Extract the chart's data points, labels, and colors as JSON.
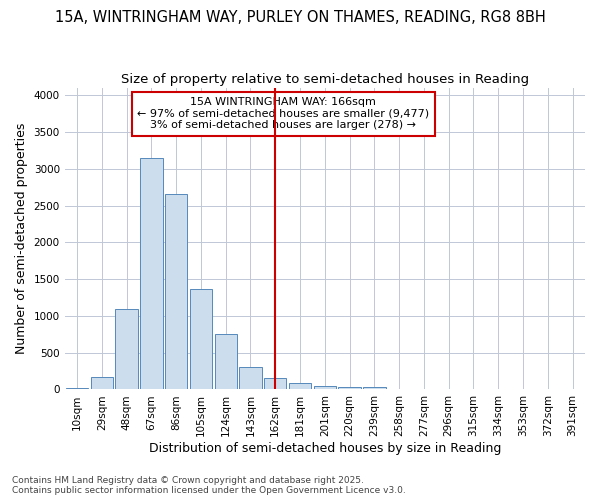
{
  "title_line1": "15A, WINTRINGHAM WAY, PURLEY ON THAMES, READING, RG8 8BH",
  "title_line2": "Size of property relative to semi-detached houses in Reading",
  "xlabel": "Distribution of semi-detached houses by size in Reading",
  "ylabel": "Number of semi-detached properties",
  "categories": [
    "10sqm",
    "29sqm",
    "48sqm",
    "67sqm",
    "86sqm",
    "105sqm",
    "124sqm",
    "143sqm",
    "162sqm",
    "181sqm",
    "201sqm",
    "220sqm",
    "239sqm",
    "258sqm",
    "277sqm",
    "296sqm",
    "315sqm",
    "334sqm",
    "353sqm",
    "372sqm",
    "391sqm"
  ],
  "values": [
    20,
    175,
    1090,
    3150,
    2660,
    1360,
    750,
    310,
    160,
    85,
    50,
    40,
    40,
    0,
    0,
    0,
    0,
    0,
    0,
    0,
    0
  ],
  "bar_color": "#ccdded",
  "bar_edge_color": "#5588bb",
  "vline_x_index": 8,
  "vline_color": "#cc0000",
  "annotation_title": "15A WINTRINGHAM WAY: 166sqm",
  "annotation_line2": "← 97% of semi-detached houses are smaller (9,477)",
  "annotation_line3": "3% of semi-detached houses are larger (278) →",
  "annotation_box_facecolor": "#ffffff",
  "annotation_box_edgecolor": "#cc0000",
  "ylim": [
    0,
    4100
  ],
  "yticks": [
    0,
    500,
    1000,
    1500,
    2000,
    2500,
    3000,
    3500,
    4000
  ],
  "background_color": "#ffffff",
  "grid_color": "#c0c8d8",
  "footer_line1": "Contains HM Land Registry data © Crown copyright and database right 2025.",
  "footer_line2": "Contains public sector information licensed under the Open Government Licence v3.0.",
  "title_fontsize": 10.5,
  "subtitle_fontsize": 9.5,
  "axis_label_fontsize": 9,
  "tick_fontsize": 7.5,
  "annotation_fontsize": 8,
  "footer_fontsize": 6.5
}
